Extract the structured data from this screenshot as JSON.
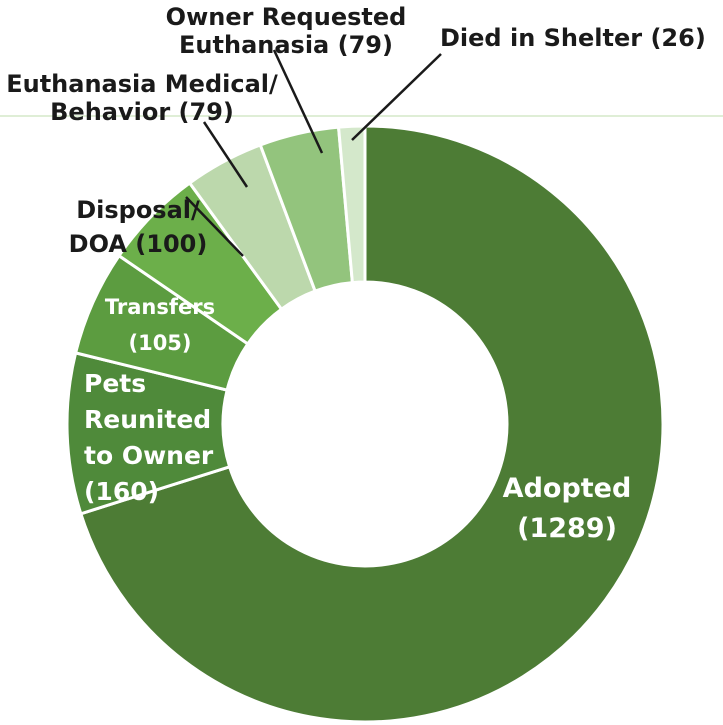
{
  "chart_data": {
    "type": "pie",
    "donut": true,
    "title": "",
    "slices": [
      {
        "label_lines": [
          "Adopted",
          "(1289)"
        ],
        "value": 1289,
        "color": "#4d7c35"
      },
      {
        "label_lines": [
          "Pets",
          "Reunited",
          "to Owner",
          "(160)"
        ],
        "value": 160,
        "color": "#4f8a3a"
      },
      {
        "label_lines": [
          "Transfers",
          "(105)"
        ],
        "value": 105,
        "color": "#5c9c40"
      },
      {
        "label_lines": [
          "Disposal/",
          "DOA (100)"
        ],
        "value": 100,
        "color": "#6caf4a"
      },
      {
        "label_lines": [
          "Euthanasia Medical/",
          "Behavior (79)"
        ],
        "value": 79,
        "color": "#bcd8ac"
      },
      {
        "label_lines": [
          "Owner Requested",
          "Euthanasia (79)"
        ],
        "value": 79,
        "color": "#93c47d"
      },
      {
        "label_lines": [
          "Died in Shelter (26)"
        ],
        "value": 26,
        "color": "#d4e8cb"
      }
    ],
    "colors": {
      "background": "#ffffff",
      "separator": "#ffffff",
      "top_rule": "#dfeed6"
    }
  }
}
